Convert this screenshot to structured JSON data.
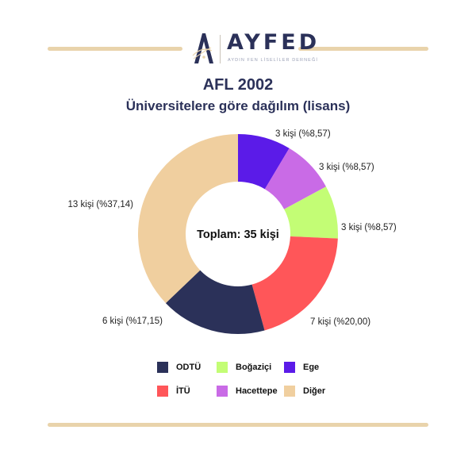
{
  "logo": {
    "wordmark": "AYFED",
    "tagline": "AYDIN FEN LİSELİLER DERNEĞİ"
  },
  "header": {
    "title": "AFL 2002",
    "subtitle": "Üniversitelere göre dağılım (lisans)"
  },
  "colors": {
    "rule": "#e9d3ab",
    "navy": "#2b3159"
  },
  "chart_data": {
    "type": "pie",
    "donut": true,
    "center_label": "Toplam: 35 kişi",
    "total": 35,
    "slices": [
      {
        "name": "Ege",
        "value": 3,
        "label": "3 kişi (%8,57)",
        "color": "#5b1be8"
      },
      {
        "name": "Hacettepe",
        "value": 3,
        "label": "3 kişi (%8,57)",
        "color": "#c96be6"
      },
      {
        "name": "Boğaziçi",
        "value": 3,
        "label": "3 kişi (%8,57)",
        "color": "#c3fd75"
      },
      {
        "name": "İTÜ",
        "value": 7,
        "label": "7 kişi (%20,00)",
        "color": "#ff5659"
      },
      {
        "name": "ODTÜ",
        "value": 6,
        "label": "6 kişi (%17,15)",
        "color": "#2b3159"
      },
      {
        "name": "Diğer",
        "value": 13,
        "label": "13 kişi (%37,14)",
        "color": "#f0cf9f"
      }
    ],
    "legend": [
      {
        "name": "ODTÜ",
        "color": "#2b3159"
      },
      {
        "name": "Boğaziçi",
        "color": "#c3fd75"
      },
      {
        "name": "Ege",
        "color": "#5b1be8"
      },
      {
        "name": "İTÜ",
        "color": "#ff5659"
      },
      {
        "name": "Hacettepe",
        "color": "#c96be6"
      },
      {
        "name": "Diğer",
        "color": "#f0cf9f"
      }
    ],
    "legend_placement": "bottom"
  }
}
